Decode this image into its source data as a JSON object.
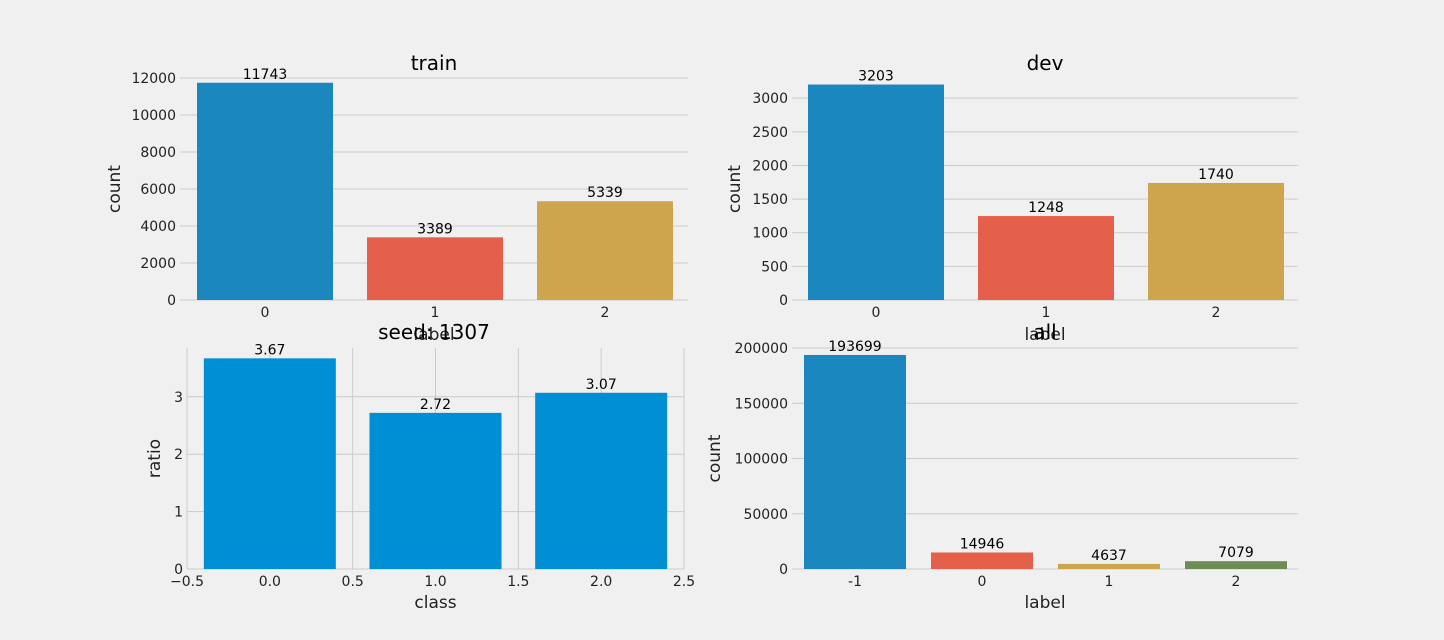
{
  "chart_data": [
    {
      "type": "bar",
      "title": "train",
      "xlabel": "label",
      "ylabel": "count",
      "categories": [
        "0",
        "1",
        "2"
      ],
      "values": [
        11743,
        3389,
        5339
      ],
      "value_labels": [
        "11743",
        "3389",
        "5339"
      ],
      "ylim": [
        0,
        12000
      ],
      "yticks": [
        0,
        2000,
        4000,
        6000,
        8000,
        10000,
        12000
      ],
      "ytick_labels": [
        "0",
        "2000",
        "4000",
        "6000",
        "8000",
        "10000",
        "12000"
      ],
      "colors": [
        "#1a87bf",
        "#e5604a",
        "#cea54c"
      ],
      "grid": "y"
    },
    {
      "type": "bar",
      "title": "dev",
      "xlabel": "label",
      "ylabel": "count",
      "categories": [
        "0",
        "1",
        "2"
      ],
      "values": [
        3203,
        1248,
        1740
      ],
      "value_labels": [
        "3203",
        "1248",
        "1740"
      ],
      "ylim": [
        0,
        3300
      ],
      "yticks": [
        0,
        500,
        1000,
        1500,
        2000,
        2500,
        3000
      ],
      "ytick_labels": [
        "0",
        "500",
        "1000",
        "1500",
        "2000",
        "2500",
        "3000"
      ],
      "colors": [
        "#1a87bf",
        "#e5604a",
        "#cea54c"
      ],
      "grid": "y"
    },
    {
      "type": "bar",
      "title": "seed: 1307",
      "xlabel": "class",
      "ylabel": "ratio",
      "x": [
        0.0,
        1.0,
        2.0
      ],
      "values": [
        3.67,
        2.72,
        3.07
      ],
      "value_labels": [
        "3.67",
        "2.72",
        "3.07"
      ],
      "ylim": [
        0,
        3.85
      ],
      "xlim": [
        -0.5,
        2.5
      ],
      "yticks": [
        0,
        1,
        2,
        3
      ],
      "ytick_labels": [
        "0",
        "1",
        "2",
        "3"
      ],
      "xticks": [
        -0.5,
        0.0,
        0.5,
        1.0,
        1.5,
        2.0,
        2.5
      ],
      "xtick_labels": [
        "−0.5",
        "0.0",
        "0.5",
        "1.0",
        "1.5",
        "2.0",
        "2.5"
      ],
      "colors": [
        "#008fd5",
        "#008fd5",
        "#008fd5"
      ],
      "grid": "both"
    },
    {
      "type": "bar",
      "title": "all",
      "xlabel": "label",
      "ylabel": "count",
      "categories": [
        "-1",
        "0",
        "1",
        "2"
      ],
      "values": [
        193699,
        14946,
        4637,
        7079
      ],
      "value_labels": [
        "193699",
        "14946",
        "4637",
        "7079"
      ],
      "ylim": [
        0,
        200000
      ],
      "yticks": [
        0,
        50000,
        100000,
        150000,
        200000
      ],
      "ytick_labels": [
        "0",
        "50000",
        "100000",
        "150000",
        "200000"
      ],
      "colors": [
        "#1a87bf",
        "#e5604a",
        "#cea54c",
        "#6c8c55"
      ],
      "grid": "y"
    }
  ]
}
